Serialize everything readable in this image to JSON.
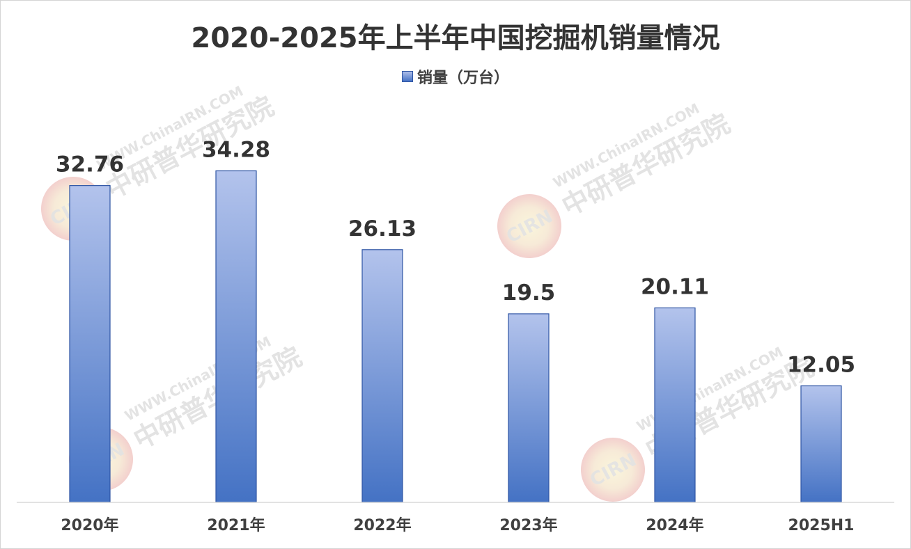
{
  "chart_data": {
    "type": "bar",
    "title": "2020-2025年上半年中国挖掘机销量情况",
    "xlabel": "",
    "ylabel": "",
    "categories": [
      "2020年",
      "2021年",
      "2022年",
      "2023年",
      "2024年",
      "2025H1"
    ],
    "series": [
      {
        "name": "销量（万台）",
        "values": [
          32.76,
          34.28,
          26.13,
          19.5,
          20.11,
          12.05
        ],
        "color": "#4472c4"
      }
    ],
    "ylim": [
      0,
      40
    ],
    "data_labels": true,
    "grid": false,
    "legend_position": "top-center"
  },
  "watermarks": {
    "text_top": "WWW.ChinaIRN.COM",
    "text_bottom": "中研普华研究院",
    "logo": "CIRN",
    "logo_icon": "cirn-logo-icon",
    "colors": [
      "#e8a2a2",
      "#f2e7b0"
    ]
  }
}
